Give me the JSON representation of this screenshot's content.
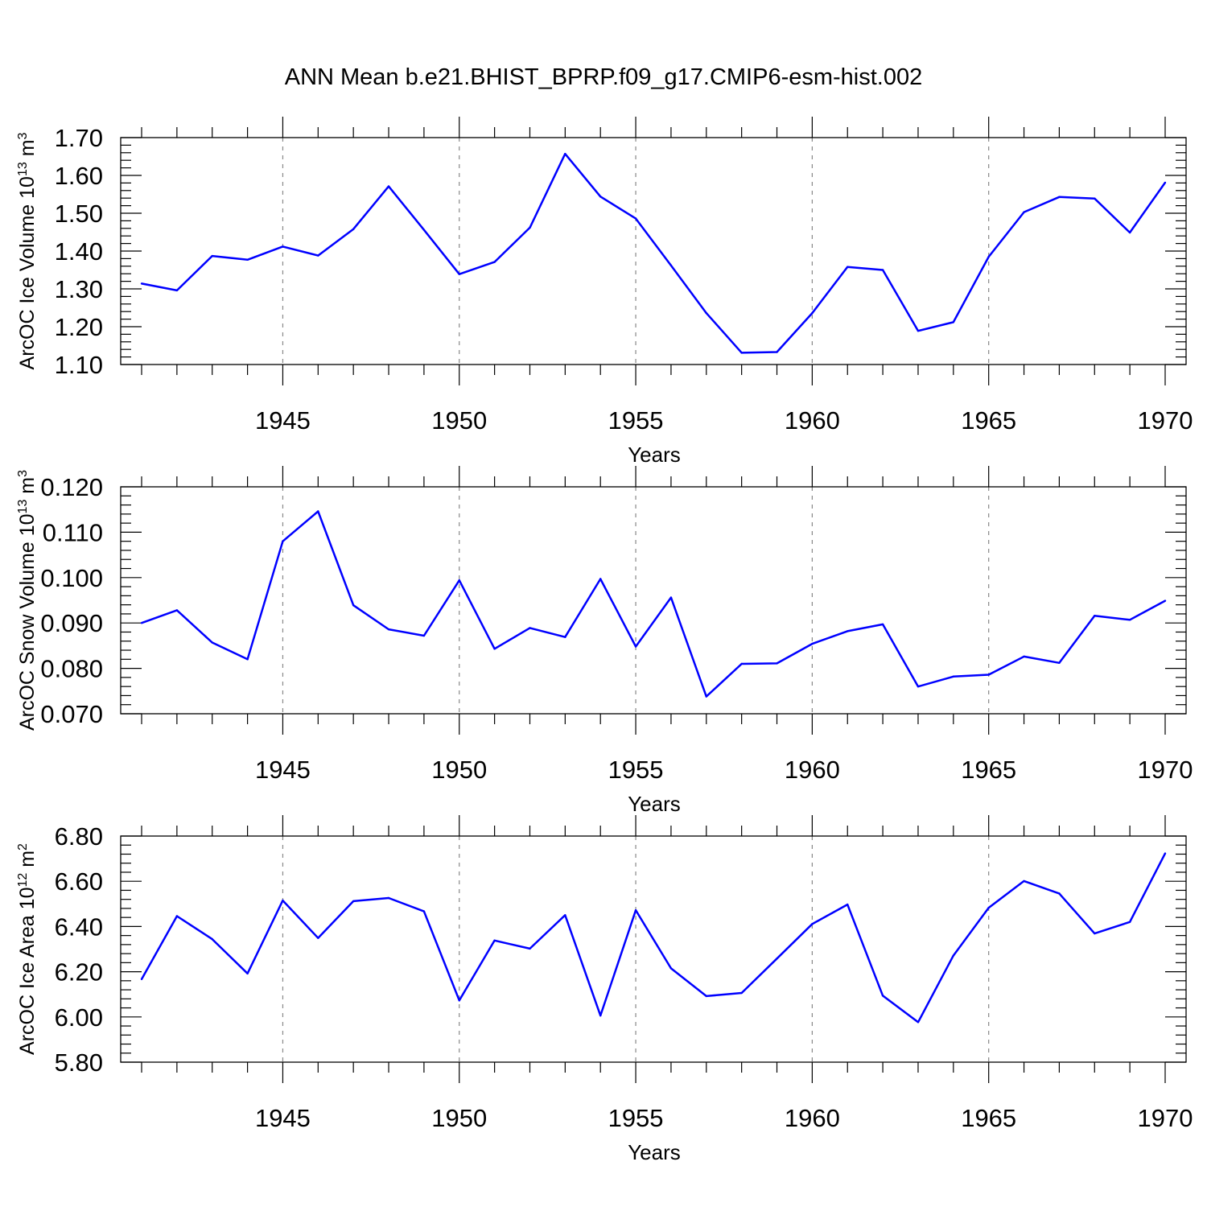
{
  "title": "ANN Mean b.e21.BHIST_BPRP.f09_g17.CMIP6-esm-hist.002",
  "colors": {
    "line": "#0000ff",
    "axis": "#000000",
    "grid": "#888888",
    "background": "#ffffff"
  },
  "chart_data": [
    {
      "type": "line",
      "title": "",
      "xlabel": "Years",
      "ylabel": {
        "text": "ArcOC Ice Volume 10",
        "exponent": "13",
        "unit": " m",
        "unit_exponent": "3"
      },
      "xlim": [
        1941,
        1970
      ],
      "ylim": [
        1.1,
        1.7
      ],
      "x_ticks": [
        "1945",
        "1950",
        "1955",
        "1960",
        "1965",
        "1970"
      ],
      "y_ticks": [
        "1.10",
        "1.20",
        "1.30",
        "1.40",
        "1.50",
        "1.60",
        "1.70"
      ],
      "grid": "vertical dashed at major x ticks",
      "x": [
        1941,
        1942,
        1943,
        1944,
        1945,
        1946,
        1947,
        1948,
        1949,
        1950,
        1951,
        1952,
        1953,
        1954,
        1955,
        1956,
        1957,
        1958,
        1959,
        1960,
        1961,
        1962,
        1963,
        1964,
        1965,
        1966,
        1967,
        1968,
        1969,
        1970
      ],
      "series": [
        {
          "values": [
            1.314,
            1.296,
            1.387,
            1.377,
            1.412,
            1.388,
            1.458,
            1.571,
            1.456,
            1.339,
            1.371,
            1.462,
            1.657,
            1.544,
            1.486,
            1.362,
            1.236,
            1.131,
            1.133,
            1.236,
            1.358,
            1.35,
            1.189,
            1.212,
            1.385,
            1.503,
            1.543,
            1.539,
            1.449,
            1.581
          ]
        }
      ]
    },
    {
      "type": "line",
      "title": "",
      "xlabel": "Years",
      "ylabel": {
        "text": "ArcOC Snow Volume 10",
        "exponent": "13",
        "unit": " m",
        "unit_exponent": "3"
      },
      "xlim": [
        1941,
        1970
      ],
      "ylim": [
        0.07,
        0.12
      ],
      "x_ticks": [
        "1945",
        "1950",
        "1955",
        "1960",
        "1965",
        "1970"
      ],
      "y_ticks": [
        "0.070",
        "0.080",
        "0.090",
        "0.100",
        "0.110",
        "0.120"
      ],
      "grid": "vertical dashed at major x ticks",
      "x": [
        1941,
        1942,
        1943,
        1944,
        1945,
        1946,
        1947,
        1948,
        1949,
        1950,
        1951,
        1952,
        1953,
        1954,
        1955,
        1956,
        1957,
        1958,
        1959,
        1960,
        1961,
        1962,
        1963,
        1964,
        1965,
        1966,
        1967,
        1968,
        1969,
        1970
      ],
      "series": [
        {
          "values": [
            0.09,
            0.0928,
            0.0857,
            0.082,
            0.108,
            0.1146,
            0.0939,
            0.0886,
            0.0872,
            0.0994,
            0.0843,
            0.0889,
            0.0869,
            0.0997,
            0.0848,
            0.0956,
            0.0738,
            0.081,
            0.0811,
            0.0854,
            0.0882,
            0.0897,
            0.076,
            0.0782,
            0.0786,
            0.0826,
            0.0812,
            0.0916,
            0.0907,
            0.0949
          ]
        }
      ]
    },
    {
      "type": "line",
      "title": "",
      "xlabel": "Years",
      "ylabel": {
        "text": "ArcOC Ice Area 10",
        "exponent": "12",
        "unit": " m",
        "unit_exponent": "2"
      },
      "xlim": [
        1941,
        1970
      ],
      "ylim": [
        5.8,
        6.8
      ],
      "x_ticks": [
        "1945",
        "1950",
        "1955",
        "1960",
        "1965",
        "1970"
      ],
      "y_ticks": [
        "5.80",
        "6.00",
        "6.20",
        "6.40",
        "6.60",
        "6.80"
      ],
      "grid": "vertical dashed at major x ticks",
      "x": [
        1941,
        1942,
        1943,
        1944,
        1945,
        1946,
        1947,
        1948,
        1949,
        1950,
        1951,
        1952,
        1953,
        1954,
        1955,
        1956,
        1957,
        1958,
        1959,
        1960,
        1961,
        1962,
        1963,
        1964,
        1965,
        1966,
        1967,
        1968,
        1969,
        1970
      ],
      "series": [
        {
          "values": [
            6.167,
            6.446,
            6.344,
            6.192,
            6.515,
            6.349,
            6.512,
            6.526,
            6.467,
            6.073,
            6.338,
            6.302,
            6.45,
            6.006,
            6.472,
            6.215,
            6.092,
            6.106,
            6.258,
            6.411,
            6.497,
            6.094,
            5.977,
            6.271,
            6.483,
            6.601,
            6.546,
            6.369,
            6.42,
            6.723
          ]
        }
      ]
    }
  ]
}
